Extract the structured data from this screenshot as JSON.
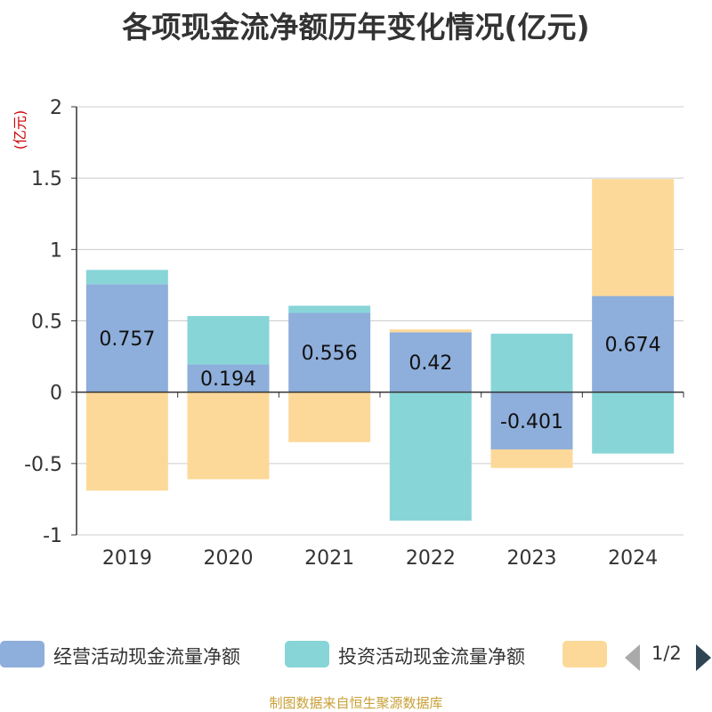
{
  "chart_data": {
    "type": "bar",
    "stacked": true,
    "title": "各项现金流净额历年变化情况(亿元)",
    "ylabel": "(亿元)",
    "categories": [
      "2019",
      "2020",
      "2021",
      "2022",
      "2023",
      "2024"
    ],
    "ylim": [
      -1,
      2
    ],
    "yticks": [
      2,
      1.5,
      1,
      0.5,
      0,
      -0.5,
      -1
    ],
    "ytick_labels": [
      "2",
      "1.5",
      "1",
      "0.5",
      "0",
      "-0.5",
      "-1"
    ],
    "grid": true,
    "legend_position": "bottom",
    "series": [
      {
        "name": "经营活动现金流量净额",
        "color": "#8eaedb",
        "values": [
          0.757,
          0.194,
          0.556,
          0.42,
          -0.401,
          0.674
        ],
        "labels": [
          "0.757",
          "0.194",
          "0.556",
          "0.42",
          "-0.401",
          "0.674"
        ]
      },
      {
        "name": "投资活动现金流量净额",
        "color": "#88d5d8",
        "values": [
          0.1,
          0.34,
          0.05,
          -0.9,
          0.41,
          -0.43
        ]
      },
      {
        "name": "",
        "color": "#fdd999",
        "values": [
          -0.69,
          -0.61,
          -0.35,
          0.02,
          -0.13,
          0.82
        ]
      }
    ]
  },
  "legend": {
    "items": [
      {
        "label": "经营活动现金流量净额",
        "color": "#8eaedb"
      },
      {
        "label": "投资活动现金流量净额",
        "color": "#88d5d8"
      },
      {
        "label": "",
        "color": "#fdd999"
      }
    ],
    "page_indicator": "1/2",
    "prev_icon": "triangle-left-icon",
    "next_icon": "triangle-right-icon"
  },
  "source_note": "制图数据来自恒生聚源数据库",
  "colors": {
    "ylabel": "#cc0000",
    "grid": "#cccccc",
    "axis": "#333333",
    "text": "#333333"
  }
}
